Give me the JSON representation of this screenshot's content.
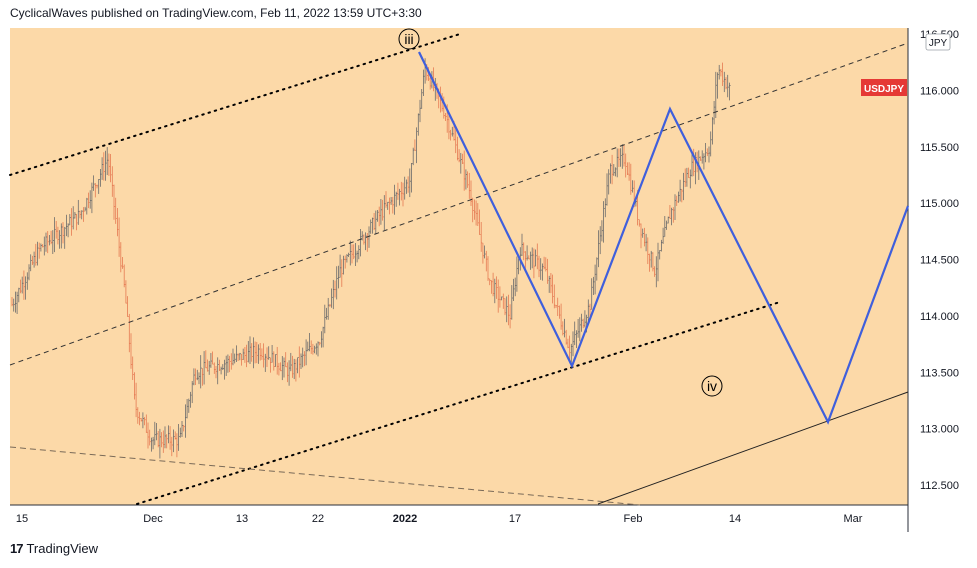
{
  "header": {
    "text": "CyclicalWaves published on TradingView.com, Feb 11, 2022 13:59 UTC+3:30"
  },
  "footer": {
    "brand": "TradingView",
    "logo_glyph": "17"
  },
  "colors": {
    "background": "#fcd9a8",
    "candle_up": "#6b6b6b",
    "candle_down": "#e57a52",
    "wave_line": "#3f5fdc",
    "symbol_badge": "#e53935"
  },
  "chart_data": {
    "type": "candlestick",
    "symbol": "USDJPY",
    "currency": "JPY",
    "x_labels": [
      "15",
      "Dec",
      "13",
      "22",
      "2022",
      "17",
      "Feb",
      "14",
      "Mar"
    ],
    "y_ticks": [
      "116.500",
      "116.000",
      "115.500",
      "115.000",
      "114.500",
      "114.000",
      "113.500",
      "113.000",
      "112.500"
    ],
    "ylim": [
      112.3,
      116.7
    ],
    "last_price": "116.000",
    "wave_labels": [
      "iii",
      "iv"
    ],
    "grid": false,
    "price_path_approx": [
      [
        "Nov 15",
        114.1
      ],
      [
        "Nov 18",
        114.6
      ],
      [
        "Nov 22",
        114.9
      ],
      [
        "Nov 24",
        115.3
      ],
      [
        "Nov 26",
        114.2
      ],
      [
        "Nov 29",
        113.3
      ],
      [
        "Dec 1",
        113.0
      ],
      [
        "Dec 3",
        112.9
      ],
      [
        "Dec 6",
        113.5
      ],
      [
        "Dec 9",
        113.6
      ],
      [
        "Dec 13",
        113.6
      ],
      [
        "Dec 16",
        113.6
      ],
      [
        "Dec 20",
        113.6
      ],
      [
        "Dec 22",
        114.0
      ],
      [
        "Dec 27",
        114.8
      ],
      [
        "Dec 31",
        115.1
      ],
      [
        "Jan 4",
        116.2
      ],
      [
        "Jan 7",
        115.7
      ],
      [
        "Jan 11",
        115.2
      ],
      [
        "Jan 13",
        114.2
      ],
      [
        "Jan 17",
        114.5
      ],
      [
        "Jan 20",
        114.2
      ],
      [
        "Jan 24",
        113.7
      ],
      [
        "Jan 26",
        114.4
      ],
      [
        "Jan 28",
        115.3
      ],
      [
        "Feb 1",
        114.8
      ],
      [
        "Feb 3",
        114.6
      ],
      [
        "Feb 7",
        115.0
      ],
      [
        "Feb 9",
        115.5
      ],
      [
        "Feb 10",
        116.3
      ],
      [
        "Feb 11",
        116.0
      ]
    ],
    "wave_projection": [
      [
        "Jan 4",
        116.3
      ],
      [
        "Jan 24",
        113.55
      ],
      [
        "Feb 6",
        115.8
      ],
      [
        "Feb 24",
        113.05
      ],
      [
        "Mar 6",
        115.0
      ]
    ]
  }
}
